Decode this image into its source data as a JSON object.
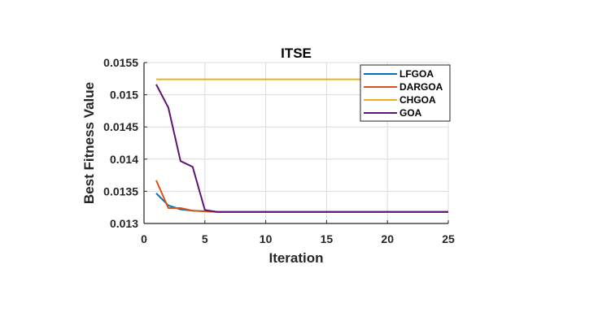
{
  "chart_data": {
    "type": "line",
    "title": "ITSE",
    "xlabel": "Iteration",
    "ylabel": "Best Fitness Value",
    "xlim": [
      0,
      25
    ],
    "ylim": [
      0.013,
      0.0155
    ],
    "xticks": [
      0,
      5,
      10,
      15,
      20,
      25
    ],
    "xtick_labels": [
      "0",
      "5",
      "10",
      "15",
      "20",
      "25"
    ],
    "yticks": [
      0.013,
      0.0135,
      0.014,
      0.0145,
      0.015,
      0.0155
    ],
    "ytick_labels": [
      "0.013",
      "0.0135",
      "0.014",
      "0.0145",
      "0.015",
      "0.0155"
    ],
    "grid": true,
    "legend_position": "top-right",
    "x": [
      1,
      2,
      3,
      4,
      5,
      6,
      7,
      8,
      9,
      10,
      11,
      12,
      13,
      14,
      15,
      16,
      17,
      18,
      19,
      20,
      21,
      22,
      23,
      24,
      25
    ],
    "series": [
      {
        "name": "LFGOA",
        "color": "#0072BD",
        "values": [
          0.01347,
          0.01328,
          0.01322,
          0.0132,
          0.01319,
          0.01318,
          0.01318,
          0.01318,
          0.01318,
          0.01318,
          0.01318,
          0.01318,
          0.01318,
          0.01318,
          0.01318,
          0.01318,
          0.01318,
          0.01318,
          0.01318,
          0.01318,
          0.01318,
          0.01318,
          0.01318,
          0.01318,
          0.01318
        ]
      },
      {
        "name": "DARGOA",
        "color": "#D95319",
        "values": [
          0.01367,
          0.01324,
          0.01324,
          0.0132,
          0.01319,
          0.01318,
          0.01318,
          0.01318,
          0.01318,
          0.01318,
          0.01318,
          0.01318,
          0.01318,
          0.01318,
          0.01318,
          0.01318,
          0.01318,
          0.01318,
          0.01318,
          0.01318,
          0.01318,
          0.01318,
          0.01318,
          0.01318,
          0.01318
        ]
      },
      {
        "name": "CHGOA",
        "color": "#EDB120",
        "values": [
          0.01524,
          0.01524,
          0.01524,
          0.01524,
          0.01524,
          0.01524,
          0.01524,
          0.01524,
          0.01524,
          0.01524,
          0.01524,
          0.01524,
          0.01524,
          0.01524,
          0.01524,
          0.01524,
          0.01524,
          0.01524,
          0.01524,
          0.01524,
          0.01524,
          0.01524,
          0.01524,
          0.01524,
          0.01524
        ]
      },
      {
        "name": "GOA",
        "color": "#5E1472",
        "values": [
          0.01516,
          0.0148,
          0.01397,
          0.01388,
          0.01321,
          0.01318,
          0.01318,
          0.01318,
          0.01318,
          0.01318,
          0.01318,
          0.01318,
          0.01318,
          0.01318,
          0.01318,
          0.01318,
          0.01318,
          0.01318,
          0.01318,
          0.01318,
          0.01318,
          0.01318,
          0.01318,
          0.01318,
          0.01318
        ]
      }
    ]
  }
}
